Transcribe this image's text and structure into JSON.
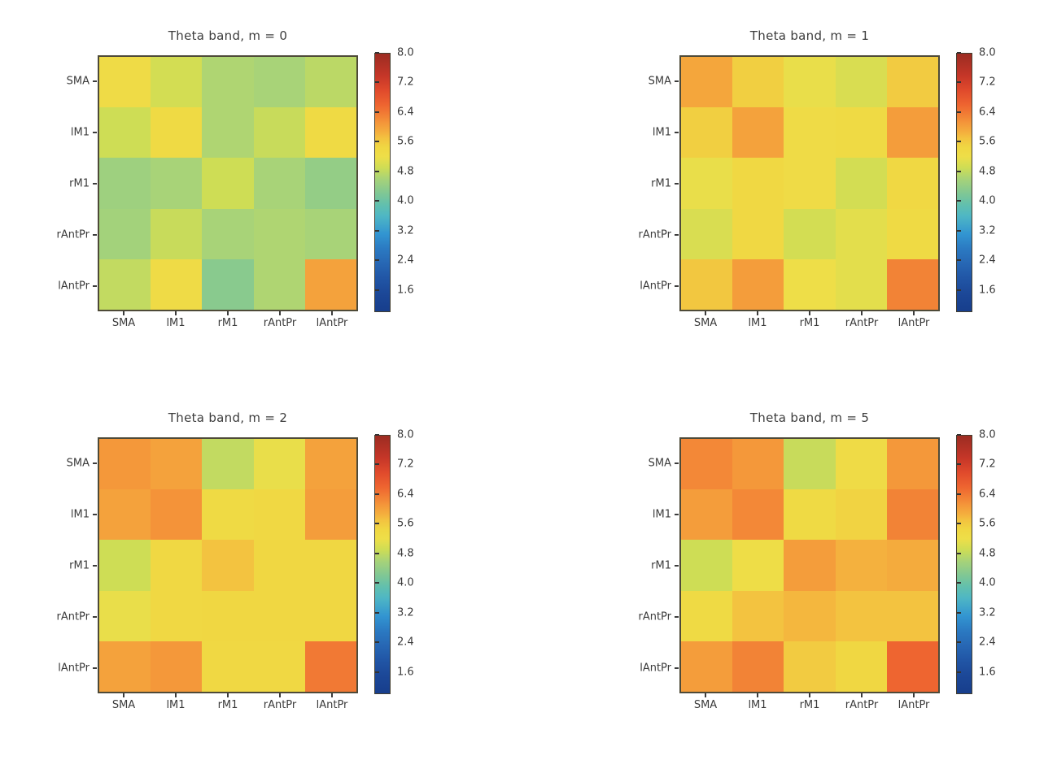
{
  "figure": {
    "background": "#ffffff",
    "text_color": "#3b3b3b",
    "frame_color": "#4e4a38"
  },
  "colormap_stops": [
    [
      0.0,
      "#173e8c"
    ],
    [
      0.071,
      "#1c4898"
    ],
    [
      0.129,
      "#2156a6"
    ],
    [
      0.186,
      "#2767b4"
    ],
    [
      0.243,
      "#2b7ac2"
    ],
    [
      0.3,
      "#3295d1"
    ],
    [
      0.371,
      "#4fb7c4"
    ],
    [
      0.414,
      "#62c0ad"
    ],
    [
      0.457,
      "#7fc795"
    ],
    [
      0.514,
      "#a8d378"
    ],
    [
      0.557,
      "#cedd55"
    ],
    [
      0.6,
      "#eede48"
    ],
    [
      0.636,
      "#f0d742"
    ],
    [
      0.671,
      "#f3c340"
    ],
    [
      0.7,
      "#f4ab3d"
    ],
    [
      0.729,
      "#f4983a"
    ],
    [
      0.757,
      "#f28336"
    ],
    [
      0.8,
      "#ee6530"
    ],
    [
      0.857,
      "#e04a2c"
    ],
    [
      0.914,
      "#c53628"
    ],
    [
      1.0,
      "#9c2c22"
    ]
  ],
  "chart_data": [
    {
      "type": "heatmap",
      "title": "Theta band, m = 0",
      "x_categories": [
        "SMA",
        "lM1",
        "rM1",
        "rAntPr",
        "lAntPr"
      ],
      "y_categories": [
        "SMA",
        "lM1",
        "rM1",
        "rAntPr",
        "lAntPr"
      ],
      "values": [
        [
          5.3,
          4.95,
          4.65,
          4.6,
          4.75
        ],
        [
          4.9,
          5.35,
          4.65,
          4.85,
          5.35
        ],
        [
          4.5,
          4.6,
          4.9,
          4.6,
          4.4
        ],
        [
          4.55,
          4.85,
          4.6,
          4.65,
          4.6
        ],
        [
          4.8,
          5.3,
          4.3,
          4.65,
          6.0
        ]
      ],
      "vmin": 1.0,
      "vmax": 8.0,
      "colorbar_ticks": [
        "8.0",
        "7.2",
        "6.4",
        "5.6",
        "4.8",
        "4.0",
        "3.2",
        "2.4",
        "1.6"
      ],
      "colormap": "jet",
      "grid": false,
      "legend_position": "right-colorbar"
    },
    {
      "type": "heatmap",
      "title": "Theta band, m = 1",
      "x_categories": [
        "SMA",
        "lM1",
        "rM1",
        "rAntPr",
        "lAntPr"
      ],
      "y_categories": [
        "SMA",
        "lM1",
        "rM1",
        "rAntPr",
        "lAntPr"
      ],
      "values": [
        [
          5.95,
          5.55,
          5.15,
          5.0,
          5.6
        ],
        [
          5.55,
          6.0,
          5.3,
          5.35,
          6.05
        ],
        [
          5.15,
          5.4,
          5.3,
          4.95,
          5.4
        ],
        [
          5.0,
          5.4,
          4.95,
          5.1,
          5.35
        ],
        [
          5.65,
          6.05,
          5.2,
          5.1,
          6.3
        ]
      ],
      "vmin": 1.0,
      "vmax": 8.0,
      "colorbar_ticks": [
        "8.0",
        "7.2",
        "6.4",
        "5.6",
        "4.8",
        "4.0",
        "3.2",
        "2.4",
        "1.6"
      ],
      "colormap": "jet",
      "grid": false,
      "legend_position": "right-colorbar"
    },
    {
      "type": "heatmap",
      "title": "Theta band, m = 2",
      "x_categories": [
        "SMA",
        "lM1",
        "rM1",
        "rAntPr",
        "lAntPr"
      ],
      "y_categories": [
        "SMA",
        "lM1",
        "rM1",
        "rAntPr",
        "lAntPr"
      ],
      "values": [
        [
          6.1,
          6.0,
          4.8,
          5.15,
          6.0
        ],
        [
          6.0,
          6.15,
          5.35,
          5.4,
          6.05
        ],
        [
          4.9,
          5.4,
          5.7,
          5.45,
          5.45
        ],
        [
          5.15,
          5.4,
          5.45,
          5.45,
          5.45
        ],
        [
          6.0,
          6.1,
          5.4,
          5.4,
          6.4
        ]
      ],
      "vmin": 1.0,
      "vmax": 8.0,
      "colorbar_ticks": [
        "8.0",
        "7.2",
        "6.4",
        "5.6",
        "4.8",
        "4.0",
        "3.2",
        "2.4",
        "1.6"
      ],
      "colormap": "jet",
      "grid": false,
      "legend_position": "right-colorbar"
    },
    {
      "type": "heatmap",
      "title": "Theta band, m = 5",
      "x_categories": [
        "SMA",
        "lM1",
        "rM1",
        "rAntPr",
        "lAntPr"
      ],
      "y_categories": [
        "SMA",
        "lM1",
        "rM1",
        "rAntPr",
        "lAntPr"
      ],
      "values": [
        [
          6.25,
          6.1,
          4.85,
          5.3,
          6.1
        ],
        [
          6.05,
          6.25,
          5.35,
          5.5,
          6.3
        ],
        [
          4.9,
          5.25,
          6.05,
          5.85,
          5.9
        ],
        [
          5.35,
          5.7,
          5.8,
          5.7,
          5.7
        ],
        [
          6.05,
          6.3,
          5.6,
          5.45,
          6.6
        ]
      ],
      "vmin": 1.0,
      "vmax": 8.0,
      "colorbar_ticks": [
        "8.0",
        "7.2",
        "6.4",
        "5.6",
        "4.8",
        "4.0",
        "3.2",
        "2.4",
        "1.6"
      ],
      "colormap": "jet",
      "grid": false,
      "legend_position": "right-colorbar"
    }
  ]
}
